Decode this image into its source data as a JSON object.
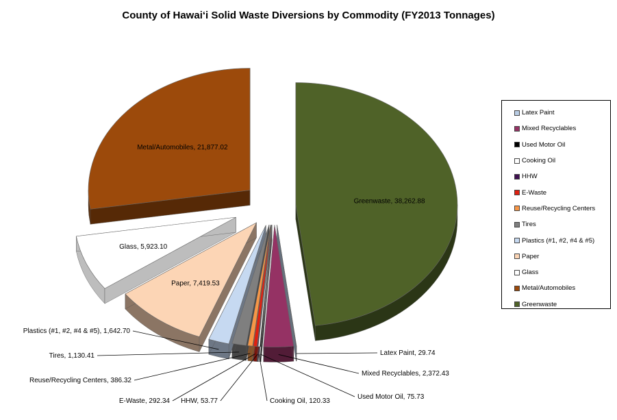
{
  "chart_data": {
    "type": "pie",
    "title": "County of Hawai‘i Solid Waste Diversions by Commodity (FY2013 Tonnages)",
    "slices": [
      {
        "name": "Greenwaste",
        "value": 38262.88,
        "label": "Greenwaste, 38,262.88",
        "color": "#4f6228"
      },
      {
        "name": "Latex Paint",
        "value": 29.74,
        "label": "Latex Paint,  29.74",
        "color": "#b9cde5"
      },
      {
        "name": "Mixed Recyclables",
        "value": 2372.43,
        "label": "Mixed Recyclables, 2,372.43",
        "color": "#953264"
      },
      {
        "name": "Used Motor Oil",
        "value": 75.73,
        "label": "Used Motor Oil,  75.73",
        "color": "#000000"
      },
      {
        "name": "Cooking Oil",
        "value": 120.33,
        "label": "Cooking Oil,  120.33",
        "color": "#ffffff"
      },
      {
        "name": "HHW",
        "value": 53.77,
        "label": "HHW,  53.77",
        "color": "#3f1050"
      },
      {
        "name": "E-Waste",
        "value": 292.34,
        "label": "E-Waste,  292.34",
        "color": "#e02010"
      },
      {
        "name": "Reuse/Recycling Centers",
        "value": 386.32,
        "label": "Reuse/Recycling Centers,  386.32",
        "color": "#f79646"
      },
      {
        "name": "Tires",
        "value": 1130.41,
        "label": "Tires,  1,130.41",
        "color": "#7f7f7f"
      },
      {
        "name": "Plastics (#1, #2, #4 & #5)",
        "value": 1642.7,
        "label": "Plastics (#1, #2, #4 & #5),  1,642.70",
        "color": "#c6d9f1"
      },
      {
        "name": "Paper",
        "value": 7419.53,
        "label": "Paper,  7,419.53",
        "color": "#fcd5b5"
      },
      {
        "name": "Glass",
        "value": 5923.1,
        "label": "Glass,  5,923.10",
        "color": "#ffffff"
      },
      {
        "name": "Metal/Automobiles",
        "value": 21877.02,
        "label": "Metal/Automobiles,  21,877.02",
        "color": "#9c4a0b"
      }
    ],
    "legend": [
      "Latex Paint",
      "Mixed Recyclables",
      "Used Motor Oil",
      "Cooking Oil",
      "HHW",
      "E-Waste",
      "Reuse/Recycling Centers",
      "Tires",
      "Plastics (#1, #2, #4 & #5)",
      "Paper",
      "Glass",
      "Metal/Automobiles",
      "Greenwaste"
    ],
    "legend_position": "right",
    "exploded": true,
    "three_d": true
  }
}
